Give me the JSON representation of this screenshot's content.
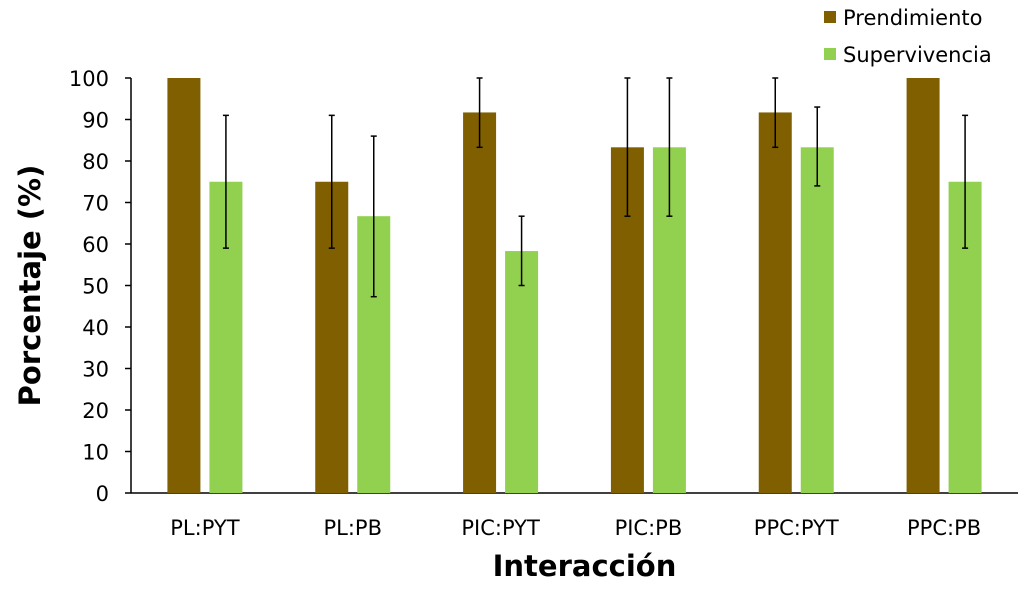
{
  "chart_data": {
    "type": "bar",
    "title": "",
    "xlabel": "Interacción",
    "ylabel": "Porcentaje (%)",
    "ylim": [
      0,
      100
    ],
    "yticks": [
      0,
      10,
      20,
      30,
      40,
      50,
      60,
      70,
      80,
      90,
      100
    ],
    "grid": false,
    "legend_position": "top-right",
    "categories": [
      "PL:PYT",
      "PL:PB",
      "PIC:PYT",
      "PIC:PB",
      "PPC:PYT",
      "PPC:PB"
    ],
    "series": [
      {
        "name": "Prendimiento",
        "color": "#7F5F00",
        "values": [
          100,
          75,
          91.7,
          83.3,
          91.7,
          100
        ],
        "error_low": [
          100,
          59,
          83.3,
          66.7,
          83.3,
          100
        ],
        "error_high": [
          100,
          91,
          100,
          100,
          100,
          100
        ]
      },
      {
        "name": "Supervivencia",
        "color": "#92D050",
        "values": [
          75,
          66.7,
          58.3,
          83.3,
          83.3,
          75
        ],
        "error_low": [
          59,
          47.3,
          50,
          66.7,
          74,
          59
        ],
        "error_high": [
          91,
          86,
          66.7,
          100,
          93,
          91
        ]
      }
    ]
  }
}
